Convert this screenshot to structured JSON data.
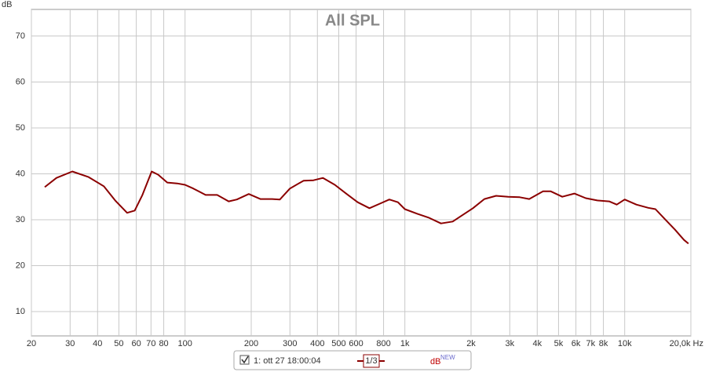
{
  "chart_data": {
    "type": "line",
    "title": "All SPL",
    "y_label": "dB",
    "log_x": true,
    "grid": true,
    "xlim": [
      20,
      20000
    ],
    "ylim": [
      4.7,
      75.8
    ],
    "xticks": [
      20,
      30,
      40,
      50,
      60,
      70,
      80,
      100,
      200,
      300,
      400,
      500,
      600,
      800,
      {
        "value": 1000,
        "label": "1k"
      },
      {
        "value": 2000,
        "label": "2k"
      },
      {
        "value": 3000,
        "label": "3k"
      },
      {
        "value": 4000,
        "label": "4k"
      },
      {
        "value": 5000,
        "label": "5k"
      },
      {
        "value": 6000,
        "label": "6k"
      },
      {
        "value": 7000,
        "label": "7k"
      },
      {
        "value": 8000,
        "label": "8k"
      },
      {
        "value": 10000,
        "label": "10k"
      },
      {
        "value": 20000,
        "label": "20,0k Hz"
      }
    ],
    "yticks": [
      10,
      20,
      30,
      40,
      50,
      60,
      70
    ],
    "x": [
      23,
      26,
      30.7,
      36.4,
      42.7,
      48.1,
      54.5,
      59,
      64,
      70.5,
      75.5,
      83,
      92,
      100,
      109,
      124,
      140,
      158,
      172,
      195,
      220,
      249,
      270,
      300,
      346,
      384,
      424,
      480,
      540,
      610,
      690,
      770,
      850,
      930,
      1000,
      1140,
      1290,
      1460,
      1650,
      1800,
      2040,
      2300,
      2600,
      2950,
      3330,
      3680,
      4250,
      4600,
      5200,
      5900,
      6650,
      7500,
      8500,
      9200,
      10000,
      11300,
      12800,
      13800,
      15400,
      16900,
      18600,
      19500
    ],
    "series": [
      {
        "name": "1: ott 27 18:00:04",
        "color": "#8b0000",
        "values": [
          37.1,
          39.1,
          40.5,
          39.3,
          37.3,
          34.2,
          31.5,
          32.0,
          35.4,
          40.5,
          39.8,
          38.1,
          37.9,
          37.6,
          36.8,
          35.4,
          35.4,
          34.0,
          34.4,
          35.6,
          34.5,
          34.5,
          34.4,
          36.8,
          38.5,
          38.6,
          39.1,
          37.6,
          35.7,
          33.8,
          32.5,
          33.5,
          34.4,
          33.8,
          32.3,
          31.3,
          30.4,
          29.2,
          29.6,
          30.8,
          32.5,
          34.5,
          35.2,
          35.0,
          34.9,
          34.5,
          36.2,
          36.2,
          35.0,
          35.7,
          34.7,
          34.2,
          34.0,
          33.3,
          34.4,
          33.3,
          32.6,
          32.3,
          29.9,
          27.9,
          25.6,
          24.8
        ]
      }
    ],
    "smoothing": "1/3",
    "legend_unit": "dB",
    "legend_badge": "NEW"
  }
}
